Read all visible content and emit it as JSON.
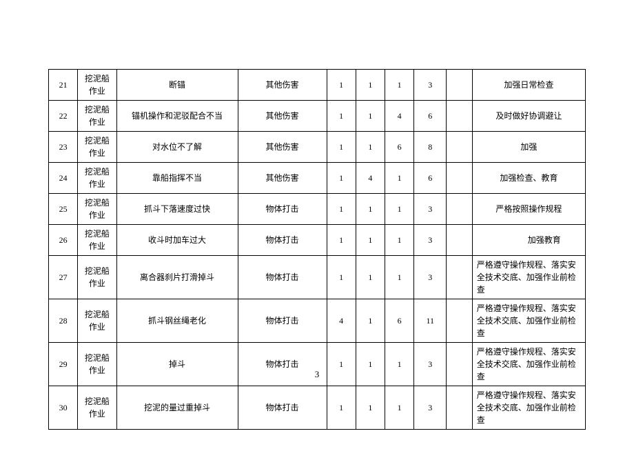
{
  "table": {
    "columns": {
      "widths": [
        36,
        48,
        150,
        110,
        36,
        36,
        36,
        40,
        32,
        140
      ],
      "alignment": [
        "center",
        "center",
        "center",
        "center",
        "center",
        "center",
        "center",
        "center",
        "center",
        "left"
      ]
    },
    "font_size": 12,
    "border_color": "#000000",
    "background_color": "#ffffff",
    "rows": [
      {
        "num": "21",
        "category": "挖泥船作业",
        "description": "断锚",
        "type": "其他伤害",
        "v1": "1",
        "v2": "1",
        "v3": "1",
        "sum": "3",
        "blank": "",
        "measure": "加强日常检查",
        "measure_align": "center"
      },
      {
        "num": "22",
        "category": "挖泥船作业",
        "description": "锚机操作和泥驳配合不当",
        "type": "其他伤害",
        "v1": "1",
        "v2": "1",
        "v3": "4",
        "sum": "6",
        "blank": "",
        "measure": "及时做好协调避让",
        "measure_align": "center"
      },
      {
        "num": "23",
        "category": "挖泥船作业",
        "description": "对水位不了解",
        "type": "其他伤害",
        "v1": "1",
        "v2": "1",
        "v3": "6",
        "sum": "8",
        "blank": "",
        "measure": "加强",
        "measure_align": "center"
      },
      {
        "num": "24",
        "category": "挖泥船作业",
        "description": "靠船指挥不当",
        "type": "其他伤害",
        "v1": "1",
        "v2": "4",
        "v3": "1",
        "sum": "6",
        "blank": "",
        "measure": "加强检查、教育",
        "measure_align": "center"
      },
      {
        "num": "25",
        "category": "挖泥船作业",
        "description": "抓斗下落速度过快",
        "type": "物体打击",
        "v1": "1",
        "v2": "1",
        "v3": "1",
        "sum": "3",
        "blank": "",
        "measure": "严格按照操作规程",
        "measure_align": "center"
      },
      {
        "num": "26",
        "category": "挖泥船作业",
        "description": "收斗时加车过大",
        "type": "物体打击",
        "v1": "1",
        "v2": "1",
        "v3": "1",
        "sum": "3",
        "blank": "",
        "measure": "加强教育",
        "measure_align": "indent"
      },
      {
        "num": "27",
        "category": "挖泥船作业",
        "description": "离合器刹片打滑掉斗",
        "type": "物体打击",
        "v1": "1",
        "v2": "1",
        "v3": "1",
        "sum": "3",
        "blank": "",
        "measure": "严格遵守操作规程、落实安全技术交底、加强作业前检查",
        "measure_align": "left"
      },
      {
        "num": "28",
        "category": "挖泥船作业",
        "description": "抓斗钢丝绳老化",
        "type": "物体打击",
        "v1": "4",
        "v2": "1",
        "v3": "6",
        "sum": "11",
        "blank": "",
        "measure": "严格遵守操作规程、落实安全技术交底、加强作业前检查",
        "measure_align": "left"
      },
      {
        "num": "29",
        "category": "挖泥船作业",
        "description": "掉斗",
        "type": "物体打击",
        "v1": "1",
        "v2": "1",
        "v3": "1",
        "sum": "3",
        "blank": "",
        "measure": "严格遵守操作规程、落实安全技术交底、加强作业前检查",
        "measure_align": "left"
      },
      {
        "num": "30",
        "category": "挖泥船作业",
        "description": "挖泥的量过重掉斗",
        "type": "物体打击",
        "v1": "1",
        "v2": "1",
        "v3": "1",
        "sum": "3",
        "blank": "",
        "measure": "严格遵守操作规程、落实安全技术交底、加强作业前检查",
        "measure_align": "left"
      }
    ]
  },
  "page_number": "3"
}
